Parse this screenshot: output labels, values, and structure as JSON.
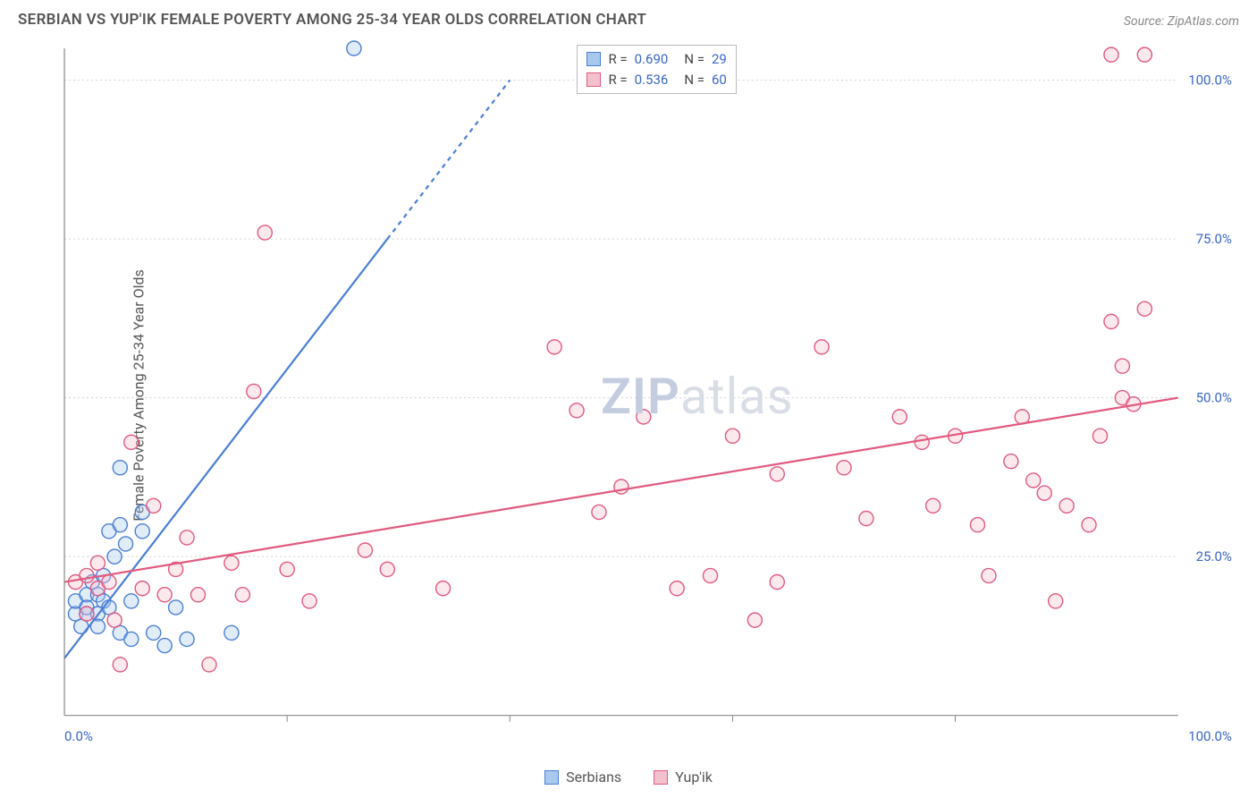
{
  "header": {
    "title": "SERBIAN VS YUP'IK FEMALE POVERTY AMONG 25-34 YEAR OLDS CORRELATION CHART",
    "source_label": "Source:",
    "source_name": "ZipAtlas.com"
  },
  "watermark": {
    "zip": "ZIP",
    "atlas": "atlas"
  },
  "chart": {
    "type": "scatter",
    "ylabel": "Female Poverty Among 25-34 Year Olds",
    "xlim": [
      0,
      100
    ],
    "ylim": [
      0,
      105
    ],
    "xticks": [
      0,
      100
    ],
    "xtick_labels": [
      "0.0%",
      "100.0%"
    ],
    "minor_x_ticks": [
      20,
      40,
      60,
      80
    ],
    "yticks": [
      25,
      50,
      75,
      100
    ],
    "ytick_labels": [
      "25.0%",
      "50.0%",
      "75.0%",
      "100.0%"
    ],
    "grid_color": "#d0d0d0",
    "background_color": "#ffffff",
    "axis_color": "#888888",
    "label_color": "#3a66c4",
    "marker_radius": 8,
    "series": [
      {
        "id": "serbians",
        "label": "Serbians",
        "fill": "#a9c8ee",
        "stroke": "#4a7fd4",
        "r_value": "0.690",
        "n_value": "29",
        "trend": {
          "x1": 0,
          "y1": 9,
          "x2": 29,
          "y2": 75,
          "dash_to_x": 40,
          "dash_to_y": 100
        },
        "points": [
          [
            1,
            16
          ],
          [
            1,
            18
          ],
          [
            1.5,
            14
          ],
          [
            2,
            16
          ],
          [
            2,
            19
          ],
          [
            2,
            17
          ],
          [
            2.5,
            21
          ],
          [
            3,
            16
          ],
          [
            3,
            19
          ],
          [
            3,
            14
          ],
          [
            3.5,
            18
          ],
          [
            3.5,
            22
          ],
          [
            4,
            17
          ],
          [
            4,
            29
          ],
          [
            4.5,
            25
          ],
          [
            5,
            13
          ],
          [
            5,
            30
          ],
          [
            5,
            39
          ],
          [
            5.5,
            27
          ],
          [
            6,
            12
          ],
          [
            6,
            18
          ],
          [
            7,
            29
          ],
          [
            7,
            32
          ],
          [
            8,
            13
          ],
          [
            9,
            11
          ],
          [
            10,
            17
          ],
          [
            11,
            12
          ],
          [
            15,
            13
          ],
          [
            26,
            105
          ]
        ]
      },
      {
        "id": "yupik",
        "label": "Yup'ik",
        "fill": "#f3c0cd",
        "stroke": "#e15a7f",
        "r_value": "0.536",
        "n_value": "60",
        "trend": {
          "x1": 0,
          "y1": 21,
          "x2": 100,
          "y2": 50
        },
        "points": [
          [
            1,
            21
          ],
          [
            2,
            22
          ],
          [
            2,
            16
          ],
          [
            3,
            20
          ],
          [
            3,
            24
          ],
          [
            4,
            21
          ],
          [
            4.5,
            15
          ],
          [
            5,
            8
          ],
          [
            6,
            43
          ],
          [
            7,
            20
          ],
          [
            8,
            33
          ],
          [
            9,
            19
          ],
          [
            10,
            23
          ],
          [
            11,
            28
          ],
          [
            12,
            19
          ],
          [
            13,
            8
          ],
          [
            15,
            24
          ],
          [
            16,
            19
          ],
          [
            17,
            51
          ],
          [
            18,
            76
          ],
          [
            20,
            23
          ],
          [
            22,
            18
          ],
          [
            27,
            26
          ],
          [
            29,
            23
          ],
          [
            34,
            20
          ],
          [
            44,
            58
          ],
          [
            46,
            48
          ],
          [
            48,
            32
          ],
          [
            50,
            36
          ],
          [
            52,
            47
          ],
          [
            55,
            20
          ],
          [
            58,
            22
          ],
          [
            60,
            44
          ],
          [
            62,
            15
          ],
          [
            64,
            21
          ],
          [
            64,
            38
          ],
          [
            68,
            58
          ],
          [
            70,
            39
          ],
          [
            72,
            31
          ],
          [
            75,
            47
          ],
          [
            77,
            43
          ],
          [
            78,
            33
          ],
          [
            80,
            44
          ],
          [
            82,
            30
          ],
          [
            83,
            22
          ],
          [
            85,
            40
          ],
          [
            86,
            47
          ],
          [
            87,
            37
          ],
          [
            88,
            35
          ],
          [
            89,
            18
          ],
          [
            90,
            33
          ],
          [
            92,
            30
          ],
          [
            93,
            44
          ],
          [
            94,
            62
          ],
          [
            95,
            50
          ],
          [
            95,
            55
          ],
          [
            96,
            49
          ],
          [
            97,
            64
          ],
          [
            94,
            104
          ],
          [
            97,
            104
          ]
        ]
      }
    ],
    "legend_series": [
      "Serbians",
      "Yup'ik"
    ]
  }
}
